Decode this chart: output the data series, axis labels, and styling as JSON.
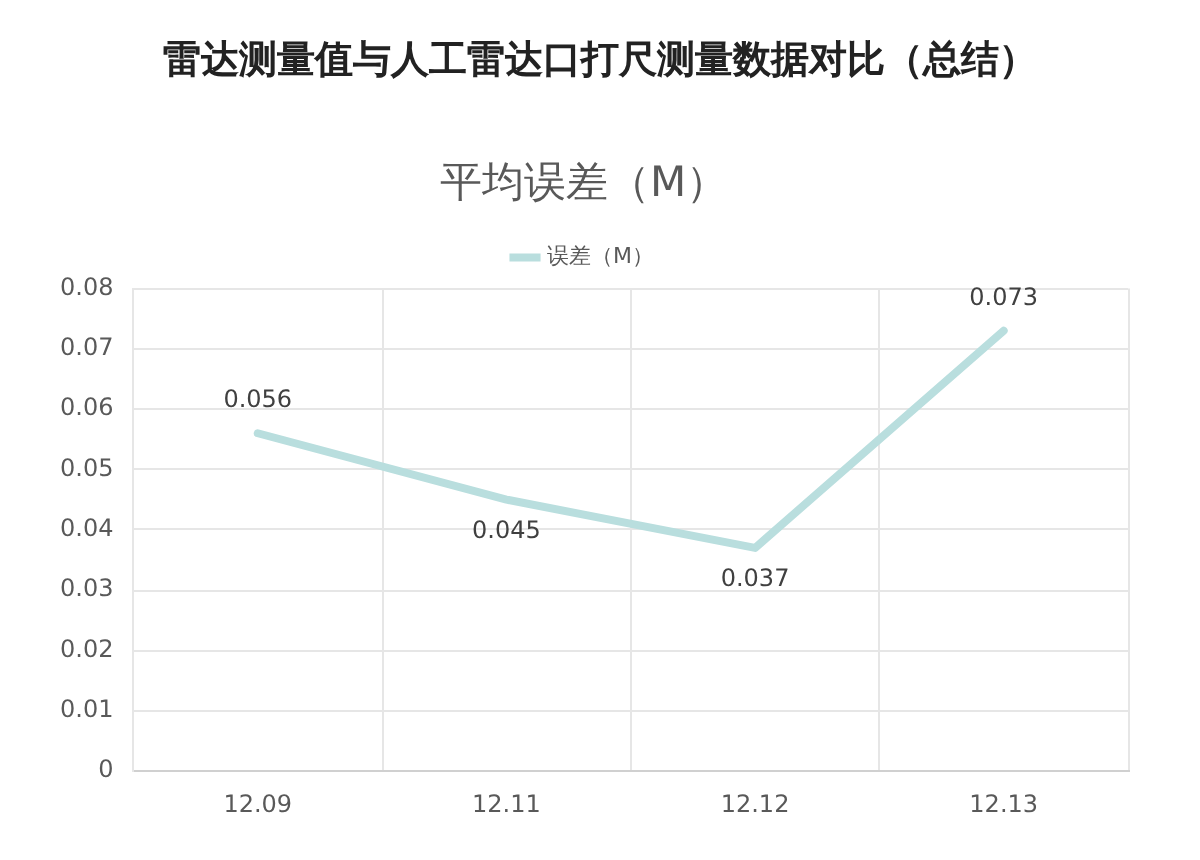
{
  "chart_data": {
    "type": "line",
    "title": "雷达测量值与人工雷达口打尺测量数据对比（总结）",
    "subtitle": "平均误差（M）",
    "categories": [
      "12.09",
      "12.11",
      "12.12",
      "12.13"
    ],
    "series": [
      {
        "name": "误差（M）",
        "color": "#b9dede",
        "values": [
          0.056,
          0.045,
          0.037,
          0.073
        ]
      }
    ],
    "ylim": [
      0,
      0.08
    ],
    "yticks": [
      0,
      0.01,
      0.02,
      0.03,
      0.04,
      0.05,
      0.06,
      0.07,
      0.08
    ],
    "grid": true,
    "legend": "top",
    "marker": "none",
    "line_style": "solid",
    "data_labels": true
  }
}
